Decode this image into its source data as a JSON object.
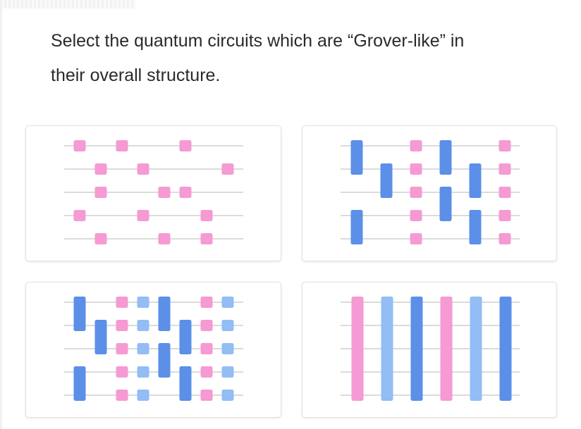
{
  "question": {
    "line1": "Select the quantum circuits which are “Grover-like” in",
    "line2": "their overall structure."
  },
  "colors": {
    "pink": "#f59ad3",
    "blue": "#5b8fe8",
    "light_blue": "#92bdf5",
    "wire": "#cfcfcf",
    "text": "#2a2a2a"
  },
  "options": [
    {
      "id": "circuit-a",
      "qubits": 5,
      "gates": [
        {
          "col": 0,
          "start": 0,
          "end": 0,
          "color": "pink"
        },
        {
          "col": 0,
          "start": 3,
          "end": 3,
          "color": "pink"
        },
        {
          "col": 1,
          "start": 1,
          "end": 1,
          "color": "pink"
        },
        {
          "col": 1,
          "start": 2,
          "end": 2,
          "color": "pink"
        },
        {
          "col": 1,
          "start": 4,
          "end": 4,
          "color": "pink"
        },
        {
          "col": 2,
          "start": 0,
          "end": 0,
          "color": "pink"
        },
        {
          "col": 3,
          "start": 1,
          "end": 1,
          "color": "pink"
        },
        {
          "col": 3,
          "start": 3,
          "end": 3,
          "color": "pink"
        },
        {
          "col": 4,
          "start": 2,
          "end": 2,
          "color": "pink"
        },
        {
          "col": 4,
          "start": 4,
          "end": 4,
          "color": "pink"
        },
        {
          "col": 5,
          "start": 0,
          "end": 0,
          "color": "pink"
        },
        {
          "col": 5,
          "start": 2,
          "end": 2,
          "color": "pink"
        },
        {
          "col": 6,
          "start": 3,
          "end": 3,
          "color": "pink"
        },
        {
          "col": 6,
          "start": 4,
          "end": 4,
          "color": "pink"
        },
        {
          "col": 7,
          "start": 1,
          "end": 1,
          "color": "pink"
        }
      ]
    },
    {
      "id": "circuit-b",
      "qubits": 5,
      "gates": [
        {
          "col": 0,
          "start": 0,
          "end": 1,
          "color": "blue"
        },
        {
          "col": 0,
          "start": 3,
          "end": 4,
          "color": "blue"
        },
        {
          "col": 1,
          "start": 1,
          "end": 2,
          "color": "blue"
        },
        {
          "col": 2,
          "start": 0,
          "end": 0,
          "color": "pink"
        },
        {
          "col": 2,
          "start": 1,
          "end": 1,
          "color": "pink"
        },
        {
          "col": 2,
          "start": 2,
          "end": 2,
          "color": "pink"
        },
        {
          "col": 2,
          "start": 3,
          "end": 3,
          "color": "pink"
        },
        {
          "col": 2,
          "start": 4,
          "end": 4,
          "color": "pink"
        },
        {
          "col": 3,
          "start": 0,
          "end": 1,
          "color": "blue"
        },
        {
          "col": 3,
          "start": 2,
          "end": 3,
          "color": "blue"
        },
        {
          "col": 4,
          "start": 1,
          "end": 2,
          "color": "blue"
        },
        {
          "col": 4,
          "start": 3,
          "end": 4,
          "color": "blue"
        },
        {
          "col": 5,
          "start": 0,
          "end": 0,
          "color": "pink"
        },
        {
          "col": 5,
          "start": 1,
          "end": 1,
          "color": "pink"
        },
        {
          "col": 5,
          "start": 2,
          "end": 2,
          "color": "pink"
        },
        {
          "col": 5,
          "start": 3,
          "end": 3,
          "color": "pink"
        },
        {
          "col": 5,
          "start": 4,
          "end": 4,
          "color": "pink"
        }
      ]
    },
    {
      "id": "circuit-c",
      "qubits": 5,
      "gates": [
        {
          "col": 0,
          "start": 0,
          "end": 1,
          "color": "blue"
        },
        {
          "col": 0,
          "start": 3,
          "end": 4,
          "color": "blue"
        },
        {
          "col": 1,
          "start": 1,
          "end": 2,
          "color": "blue"
        },
        {
          "col": 2,
          "start": 0,
          "end": 0,
          "color": "pink"
        },
        {
          "col": 2,
          "start": 1,
          "end": 1,
          "color": "pink"
        },
        {
          "col": 2,
          "start": 2,
          "end": 2,
          "color": "pink"
        },
        {
          "col": 2,
          "start": 3,
          "end": 3,
          "color": "pink"
        },
        {
          "col": 2,
          "start": 4,
          "end": 4,
          "color": "pink"
        },
        {
          "col": 3,
          "start": 0,
          "end": 0,
          "color": "light_blue"
        },
        {
          "col": 3,
          "start": 1,
          "end": 1,
          "color": "light_blue"
        },
        {
          "col": 3,
          "start": 2,
          "end": 2,
          "color": "light_blue"
        },
        {
          "col": 3,
          "start": 3,
          "end": 3,
          "color": "light_blue"
        },
        {
          "col": 3,
          "start": 4,
          "end": 4,
          "color": "light_blue"
        },
        {
          "col": 4,
          "start": 0,
          "end": 1,
          "color": "blue"
        },
        {
          "col": 4,
          "start": 2,
          "end": 3,
          "color": "blue"
        },
        {
          "col": 5,
          "start": 1,
          "end": 2,
          "color": "blue"
        },
        {
          "col": 5,
          "start": 3,
          "end": 4,
          "color": "blue"
        },
        {
          "col": 6,
          "start": 0,
          "end": 0,
          "color": "pink"
        },
        {
          "col": 6,
          "start": 1,
          "end": 1,
          "color": "pink"
        },
        {
          "col": 6,
          "start": 2,
          "end": 2,
          "color": "pink"
        },
        {
          "col": 6,
          "start": 3,
          "end": 3,
          "color": "pink"
        },
        {
          "col": 6,
          "start": 4,
          "end": 4,
          "color": "pink"
        },
        {
          "col": 7,
          "start": 0,
          "end": 0,
          "color": "light_blue"
        },
        {
          "col": 7,
          "start": 1,
          "end": 1,
          "color": "light_blue"
        },
        {
          "col": 7,
          "start": 2,
          "end": 2,
          "color": "light_blue"
        },
        {
          "col": 7,
          "start": 3,
          "end": 3,
          "color": "light_blue"
        },
        {
          "col": 7,
          "start": 4,
          "end": 4,
          "color": "light_blue"
        }
      ]
    },
    {
      "id": "circuit-d",
      "qubits": 5,
      "gates": [
        {
          "col": 0,
          "start": 0,
          "end": 4,
          "color": "pink"
        },
        {
          "col": 1,
          "start": 0,
          "end": 4,
          "color": "light_blue"
        },
        {
          "col": 2,
          "start": 0,
          "end": 4,
          "color": "blue"
        },
        {
          "col": 3,
          "start": 0,
          "end": 4,
          "color": "pink"
        },
        {
          "col": 4,
          "start": 0,
          "end": 4,
          "color": "light_blue"
        },
        {
          "col": 5,
          "start": 0,
          "end": 4,
          "color": "blue"
        }
      ]
    }
  ]
}
